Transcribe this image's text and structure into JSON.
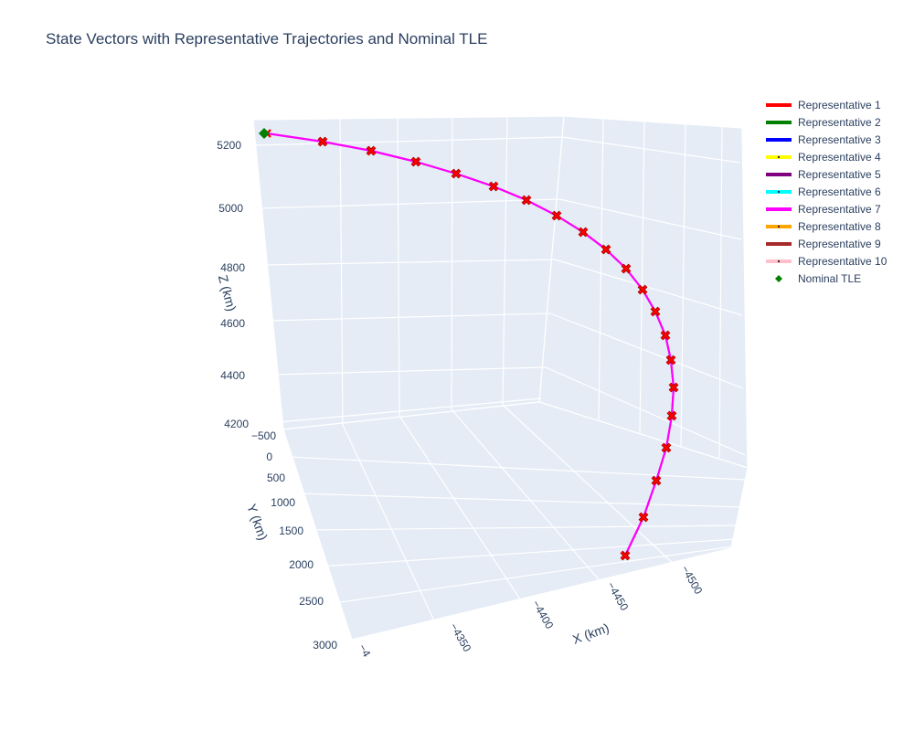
{
  "chart_data": {
    "type": "line",
    "title": "State Vectors with Representative Trajectories and Nominal TLE",
    "axes": {
      "x": {
        "label": "X (km)",
        "ticks": [
          "−4",
          "−4350",
          "−4400",
          "−4450",
          "−4500"
        ],
        "range": [
          -4300,
          -4510
        ]
      },
      "y": {
        "label": "Y (km)",
        "ticks": [
          "−500",
          "0",
          "500",
          "1000",
          "1500",
          "2000",
          "2500",
          "3000"
        ],
        "range": [
          -500,
          3000
        ]
      },
      "z": {
        "label": "Z (km)",
        "ticks": [
          "4200",
          "4400",
          "4600",
          "4800",
          "5000",
          "5200"
        ],
        "range": [
          4200,
          5280
        ]
      }
    },
    "grid": true,
    "legend_position": "top-right",
    "series": [
      {
        "name": "Representative 1",
        "color": "#ff0000",
        "line_style": "solid"
      },
      {
        "name": "Representative 2",
        "color": "#008000",
        "line_style": "solid"
      },
      {
        "name": "Representative 3",
        "color": "#0000ff",
        "line_style": "solid"
      },
      {
        "name": "Representative 4",
        "color": "#ffff00",
        "line_style": "dotted-center"
      },
      {
        "name": "Representative 5",
        "color": "#800080",
        "line_style": "solid"
      },
      {
        "name": "Representative 6",
        "color": "#00ffff",
        "line_style": "dotted-center"
      },
      {
        "name": "Representative 7",
        "color": "#ff00ff",
        "line_style": "solid"
      },
      {
        "name": "Representative 8",
        "color": "#ffa500",
        "line_style": "dotted-center"
      },
      {
        "name": "Representative 9",
        "color": "#a52a2a",
        "line_style": "solid"
      },
      {
        "name": "Representative 10",
        "color": "#ffc0cb",
        "line_style": "dotted-center"
      }
    ],
    "state_vectors": {
      "marker": "x",
      "color": "#ff0000",
      "points": [
        {
          "x": -4325,
          "y": -450,
          "z": 5235
        },
        {
          "x": -4332,
          "y": -330,
          "z": 5212
        },
        {
          "x": -4345,
          "y": -200,
          "z": 5185
        },
        {
          "x": -4360,
          "y": -70,
          "z": 5155
        },
        {
          "x": -4375,
          "y": 60,
          "z": 5120
        },
        {
          "x": -4390,
          "y": 190,
          "z": 5082
        },
        {
          "x": -4404,
          "y": 320,
          "z": 5040
        },
        {
          "x": -4417,
          "y": 450,
          "z": 4995
        },
        {
          "x": -4430,
          "y": 580,
          "z": 4945
        },
        {
          "x": -4442,
          "y": 710,
          "z": 4890
        },
        {
          "x": -4454,
          "y": 840,
          "z": 4830
        },
        {
          "x": -4465,
          "y": 970,
          "z": 4765
        },
        {
          "x": -4475,
          "y": 1100,
          "z": 4695
        },
        {
          "x": -4484,
          "y": 1230,
          "z": 4620
        },
        {
          "x": -4491,
          "y": 1360,
          "z": 4545
        },
        {
          "x": -4496,
          "y": 1490,
          "z": 4470
        },
        {
          "x": -4498,
          "y": 1620,
          "z": 4395
        },
        {
          "x": -4497,
          "y": 1750,
          "z": 4320
        },
        {
          "x": -4494,
          "y": 1880,
          "z": 4255
        },
        {
          "x": -4488,
          "y": 2010,
          "z": 4205
        },
        {
          "x": -4480,
          "y": 2140,
          "z": 4165
        }
      ]
    },
    "nominal_tle": {
      "name": "Nominal TLE",
      "color": "#008000",
      "marker": "diamond",
      "x": -4322,
      "y": -470,
      "z": 5240
    }
  }
}
